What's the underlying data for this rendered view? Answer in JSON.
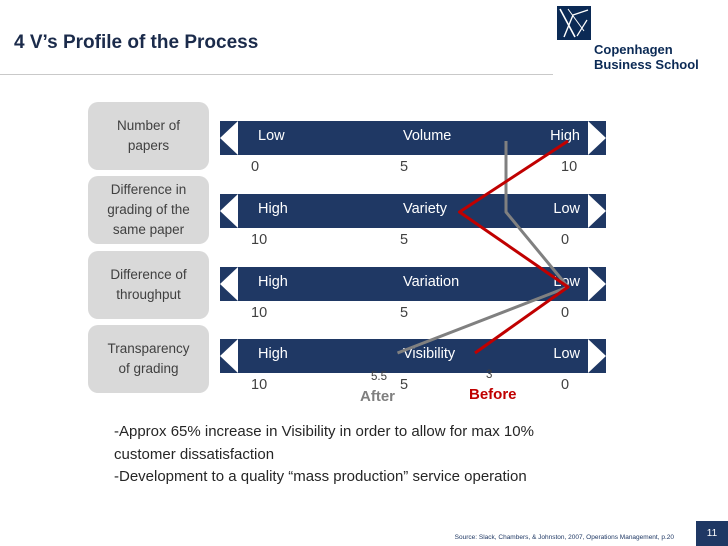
{
  "title": "4 V’s Profile of the Process",
  "logo": {
    "line1": "Copenhagen",
    "line2": "Business School"
  },
  "rows": [
    {
      "criterion": "Number of\npapers",
      "dimension": "Volume",
      "left_label": "Low",
      "right_label": "High",
      "scale": [
        "0",
        "5",
        "10"
      ],
      "ticks": [
        0,
        5,
        10
      ]
    },
    {
      "criterion": "Difference in\ngrading of the\nsame paper",
      "dimension": "Variety",
      "left_label": "High",
      "right_label": "Low",
      "scale": [
        "10",
        "5",
        "0"
      ],
      "ticks": [
        10,
        5,
        0
      ]
    },
    {
      "criterion": "Difference of\nthroughput",
      "dimension": "Variation",
      "left_label": "High",
      "right_label": "Low",
      "scale": [
        "10",
        "5",
        "0"
      ],
      "ticks": [
        10,
        5,
        0
      ]
    },
    {
      "criterion": "Transparency\nof grading",
      "dimension": "Visibility",
      "left_label": "High",
      "right_label": "Low",
      "scale": [
        "10",
        "5",
        "0"
      ],
      "ticks": [
        10,
        5,
        0
      ]
    }
  ],
  "chart_data": {
    "type": "line",
    "categories": [
      "Volume",
      "Variety",
      "Variation",
      "Visibility"
    ],
    "series": [
      {
        "name": "After",
        "color": "#808080",
        "values": [
          8,
          2,
          0,
          5.5
        ]
      },
      {
        "name": "Before",
        "color": "#c00000",
        "values": [
          10,
          3.5,
          0,
          3
        ]
      }
    ],
    "value_labels": {
      "after_visibility": "5.5",
      "before_visibility": "3"
    }
  },
  "notes": {
    "line1": "-Approx 65% increase in Visibility in order to allow for max 10%\ncustomer dissatisfaction",
    "line2": "-Development to a quality “mass production” service operation"
  },
  "source": "Source: Slack, Chambers, & Johnston, 2007, Operations Management, p.20",
  "page_number": "11"
}
